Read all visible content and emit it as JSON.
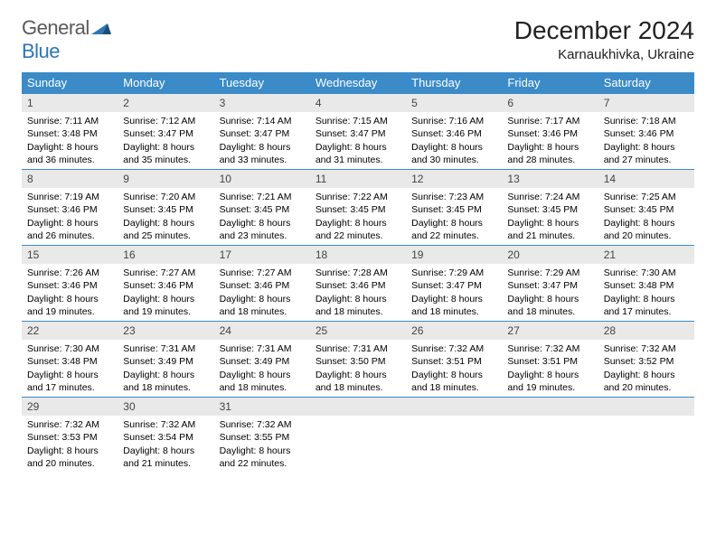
{
  "brand": {
    "part1": "General",
    "part2": "Blue"
  },
  "title": "December 2024",
  "location": "Karnaukhivka, Ukraine",
  "colors": {
    "header_bg": "#3b8bc9",
    "header_text": "#ffffff",
    "daynum_bg": "#e9e9e9",
    "row_border": "#3b8bc9",
    "logo_gray": "#5a5a5a",
    "logo_blue": "#2d76b5"
  },
  "weekdays": [
    "Sunday",
    "Monday",
    "Tuesday",
    "Wednesday",
    "Thursday",
    "Friday",
    "Saturday"
  ],
  "weeks": [
    [
      {
        "n": "1",
        "sr": "7:11 AM",
        "ss": "3:48 PM",
        "dl": "8 hours and 36 minutes."
      },
      {
        "n": "2",
        "sr": "7:12 AM",
        "ss": "3:47 PM",
        "dl": "8 hours and 35 minutes."
      },
      {
        "n": "3",
        "sr": "7:14 AM",
        "ss": "3:47 PM",
        "dl": "8 hours and 33 minutes."
      },
      {
        "n": "4",
        "sr": "7:15 AM",
        "ss": "3:47 PM",
        "dl": "8 hours and 31 minutes."
      },
      {
        "n": "5",
        "sr": "7:16 AM",
        "ss": "3:46 PM",
        "dl": "8 hours and 30 minutes."
      },
      {
        "n": "6",
        "sr": "7:17 AM",
        "ss": "3:46 PM",
        "dl": "8 hours and 28 minutes."
      },
      {
        "n": "7",
        "sr": "7:18 AM",
        "ss": "3:46 PM",
        "dl": "8 hours and 27 minutes."
      }
    ],
    [
      {
        "n": "8",
        "sr": "7:19 AM",
        "ss": "3:46 PM",
        "dl": "8 hours and 26 minutes."
      },
      {
        "n": "9",
        "sr": "7:20 AM",
        "ss": "3:45 PM",
        "dl": "8 hours and 25 minutes."
      },
      {
        "n": "10",
        "sr": "7:21 AM",
        "ss": "3:45 PM",
        "dl": "8 hours and 23 minutes."
      },
      {
        "n": "11",
        "sr": "7:22 AM",
        "ss": "3:45 PM",
        "dl": "8 hours and 22 minutes."
      },
      {
        "n": "12",
        "sr": "7:23 AM",
        "ss": "3:45 PM",
        "dl": "8 hours and 22 minutes."
      },
      {
        "n": "13",
        "sr": "7:24 AM",
        "ss": "3:45 PM",
        "dl": "8 hours and 21 minutes."
      },
      {
        "n": "14",
        "sr": "7:25 AM",
        "ss": "3:45 PM",
        "dl": "8 hours and 20 minutes."
      }
    ],
    [
      {
        "n": "15",
        "sr": "7:26 AM",
        "ss": "3:46 PM",
        "dl": "8 hours and 19 minutes."
      },
      {
        "n": "16",
        "sr": "7:27 AM",
        "ss": "3:46 PM",
        "dl": "8 hours and 19 minutes."
      },
      {
        "n": "17",
        "sr": "7:27 AM",
        "ss": "3:46 PM",
        "dl": "8 hours and 18 minutes."
      },
      {
        "n": "18",
        "sr": "7:28 AM",
        "ss": "3:46 PM",
        "dl": "8 hours and 18 minutes."
      },
      {
        "n": "19",
        "sr": "7:29 AM",
        "ss": "3:47 PM",
        "dl": "8 hours and 18 minutes."
      },
      {
        "n": "20",
        "sr": "7:29 AM",
        "ss": "3:47 PM",
        "dl": "8 hours and 18 minutes."
      },
      {
        "n": "21",
        "sr": "7:30 AM",
        "ss": "3:48 PM",
        "dl": "8 hours and 17 minutes."
      }
    ],
    [
      {
        "n": "22",
        "sr": "7:30 AM",
        "ss": "3:48 PM",
        "dl": "8 hours and 17 minutes."
      },
      {
        "n": "23",
        "sr": "7:31 AM",
        "ss": "3:49 PM",
        "dl": "8 hours and 18 minutes."
      },
      {
        "n": "24",
        "sr": "7:31 AM",
        "ss": "3:49 PM",
        "dl": "8 hours and 18 minutes."
      },
      {
        "n": "25",
        "sr": "7:31 AM",
        "ss": "3:50 PM",
        "dl": "8 hours and 18 minutes."
      },
      {
        "n": "26",
        "sr": "7:32 AM",
        "ss": "3:51 PM",
        "dl": "8 hours and 18 minutes."
      },
      {
        "n": "27",
        "sr": "7:32 AM",
        "ss": "3:51 PM",
        "dl": "8 hours and 19 minutes."
      },
      {
        "n": "28",
        "sr": "7:32 AM",
        "ss": "3:52 PM",
        "dl": "8 hours and 20 minutes."
      }
    ],
    [
      {
        "n": "29",
        "sr": "7:32 AM",
        "ss": "3:53 PM",
        "dl": "8 hours and 20 minutes."
      },
      {
        "n": "30",
        "sr": "7:32 AM",
        "ss": "3:54 PM",
        "dl": "8 hours and 21 minutes."
      },
      {
        "n": "31",
        "sr": "7:32 AM",
        "ss": "3:55 PM",
        "dl": "8 hours and 22 minutes."
      },
      null,
      null,
      null,
      null
    ]
  ],
  "labels": {
    "sunrise": "Sunrise:",
    "sunset": "Sunset:",
    "daylight": "Daylight:"
  }
}
